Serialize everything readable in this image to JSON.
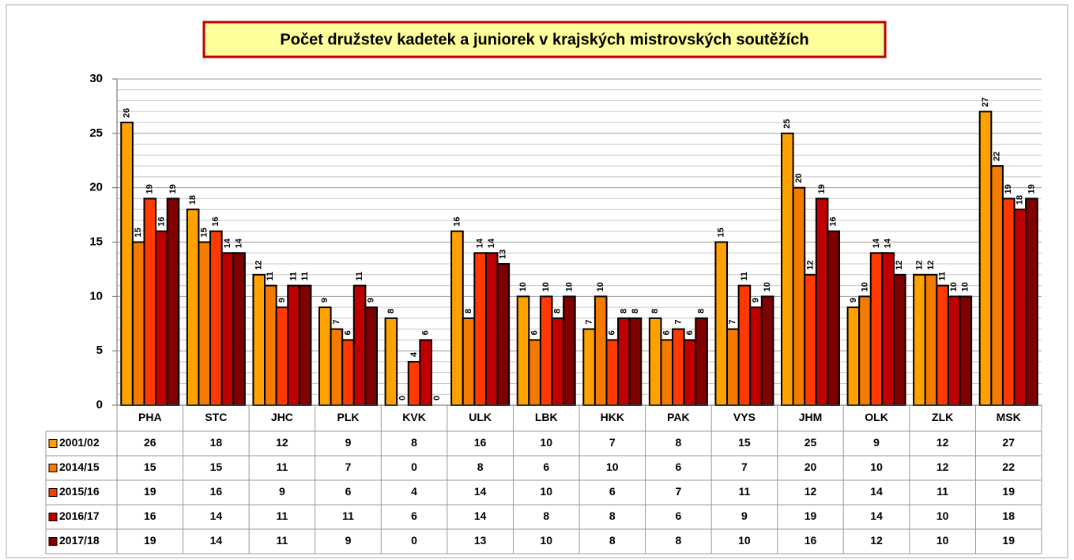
{
  "chart_data": {
    "type": "bar",
    "title": "Počet družstev kadetek a juniorek v krajských mistrovských soutěžích",
    "categories": [
      "PHA",
      "STC",
      "JHC",
      "PLK",
      "KVK",
      "ULK",
      "LBK",
      "HKK",
      "PAK",
      "VYS",
      "JHM",
      "OLK",
      "ZLK",
      "MSK"
    ],
    "series": [
      {
        "name": "2001/02",
        "color": "#FFA200",
        "values": [
          26,
          18,
          12,
          9,
          8,
          16,
          10,
          7,
          8,
          15,
          25,
          9,
          12,
          27
        ]
      },
      {
        "name": "2014/15",
        "color": "#F57A00",
        "values": [
          15,
          15,
          11,
          7,
          0,
          8,
          6,
          10,
          6,
          7,
          20,
          10,
          12,
          22
        ]
      },
      {
        "name": "2015/16",
        "color": "#FF3A00",
        "values": [
          19,
          16,
          9,
          6,
          4,
          14,
          10,
          6,
          7,
          11,
          12,
          14,
          11,
          19
        ]
      },
      {
        "name": "2016/17",
        "color": "#C00000",
        "values": [
          16,
          14,
          11,
          11,
          6,
          14,
          8,
          8,
          6,
          9,
          19,
          14,
          10,
          18
        ]
      },
      {
        "name": "2017/18",
        "color": "#800000",
        "values": [
          19,
          14,
          11,
          9,
          0,
          13,
          10,
          8,
          8,
          10,
          16,
          12,
          10,
          19
        ]
      }
    ],
    "ylim": [
      0,
      30
    ],
    "yticks": [
      0,
      5,
      10,
      15,
      20,
      25,
      30
    ],
    "minor_yticks": [
      1,
      2,
      3,
      4,
      6,
      7,
      8,
      9,
      11,
      12,
      13,
      14,
      16,
      17,
      18,
      19,
      21,
      22,
      23,
      24,
      26,
      27,
      28,
      29
    ],
    "grid": true,
    "data_table": true
  }
}
